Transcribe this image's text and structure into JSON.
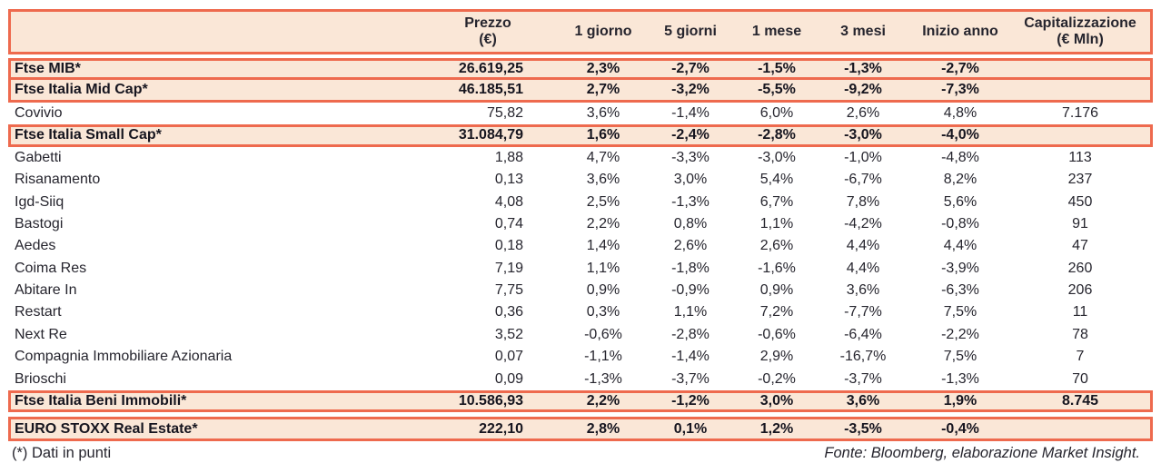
{
  "table": {
    "columns": {
      "name": "",
      "prezzo": {
        "line1": "Prezzo",
        "line2": "(€)"
      },
      "g1": "1 giorno",
      "g5": "5 giorni",
      "m1": "1 mese",
      "m3": "3 mesi",
      "inizio": "Inizio anno",
      "cap": {
        "line1": "Capitalizzazione",
        "line2": "(€ Mln)"
      }
    },
    "sections": [
      {
        "rows": [
          {
            "name": "Ftse MIB*",
            "highlight": true,
            "values": [
              "26.619,25",
              "2,3%",
              "-2,7%",
              "-1,5%",
              "-1,3%",
              "-2,7%",
              ""
            ]
          },
          {
            "name": "Ftse Italia Mid Cap*",
            "highlight": true,
            "values": [
              "46.185,51",
              "2,7%",
              "-3,2%",
              "-5,5%",
              "-9,2%",
              "-7,3%",
              ""
            ]
          },
          {
            "name": "Covivio",
            "highlight": false,
            "values": [
              "75,82",
              "3,6%",
              "-1,4%",
              "6,0%",
              "2,6%",
              "4,8%",
              "7.176"
            ]
          },
          {
            "name": "Ftse Italia Small Cap*",
            "highlight": true,
            "values": [
              "31.084,79",
              "1,6%",
              "-2,4%",
              "-2,8%",
              "-3,0%",
              "-4,0%",
              ""
            ]
          },
          {
            "name": "Gabetti",
            "highlight": false,
            "values": [
              "1,88",
              "4,7%",
              "-3,3%",
              "-3,0%",
              "-1,0%",
              "-4,8%",
              "113"
            ]
          },
          {
            "name": "Risanamento",
            "highlight": false,
            "values": [
              "0,13",
              "3,6%",
              "3,0%",
              "5,4%",
              "-6,7%",
              "8,2%",
              "237"
            ]
          },
          {
            "name": "Igd-Siiq",
            "highlight": false,
            "values": [
              "4,08",
              "2,5%",
              "-1,3%",
              "6,7%",
              "7,8%",
              "5,6%",
              "450"
            ]
          },
          {
            "name": "Bastogi",
            "highlight": false,
            "values": [
              "0,74",
              "2,2%",
              "0,8%",
              "1,1%",
              "-4,2%",
              "-0,8%",
              "91"
            ]
          },
          {
            "name": "Aedes",
            "highlight": false,
            "values": [
              "0,18",
              "1,4%",
              "2,6%",
              "2,6%",
              "4,4%",
              "4,4%",
              "47"
            ]
          },
          {
            "name": "Coima Res",
            "highlight": false,
            "values": [
              "7,19",
              "1,1%",
              "-1,8%",
              "-1,6%",
              "4,4%",
              "-3,9%",
              "260"
            ]
          },
          {
            "name": "Abitare In",
            "highlight": false,
            "values": [
              "7,75",
              "0,9%",
              "-0,9%",
              "0,9%",
              "3,6%",
              "-6,3%",
              "206"
            ]
          },
          {
            "name": "Restart",
            "highlight": false,
            "values": [
              "0,36",
              "0,3%",
              "1,1%",
              "7,2%",
              "-7,7%",
              "7,5%",
              "11"
            ]
          },
          {
            "name": "Next Re",
            "highlight": false,
            "values": [
              "3,52",
              "-0,6%",
              "-2,8%",
              "-0,6%",
              "-6,4%",
              "-2,2%",
              "78"
            ]
          },
          {
            "name": "Compagnia Immobiliare Azionaria",
            "highlight": false,
            "values": [
              "0,07",
              "-1,1%",
              "-1,4%",
              "2,9%",
              "-16,7%",
              "7,5%",
              "7"
            ]
          },
          {
            "name": "Brioschi",
            "highlight": false,
            "values": [
              "0,09",
              "-1,3%",
              "-3,7%",
              "-0,2%",
              "-3,7%",
              "-1,3%",
              "70"
            ]
          },
          {
            "name": "Ftse Italia Beni Immobili*",
            "highlight": true,
            "values": [
              "10.586,93",
              "2,2%",
              "-1,2%",
              "3,0%",
              "3,6%",
              "1,9%",
              "8.745"
            ]
          }
        ]
      },
      {
        "rows": [
          {
            "name": "EURO STOXX Real Estate*",
            "highlight": true,
            "values": [
              "222,10",
              "2,8%",
              "0,1%",
              "1,2%",
              "-3,5%",
              "-0,4%",
              ""
            ]
          }
        ]
      }
    ]
  },
  "footer": {
    "note": "(*) Dati in punti",
    "source": "Fonte: Bloomberg, elaborazione Market Insight."
  },
  "colors": {
    "accent_rule": "#ee6a4e",
    "highlight_fill": "#fae7d7",
    "text": "#26252e"
  }
}
